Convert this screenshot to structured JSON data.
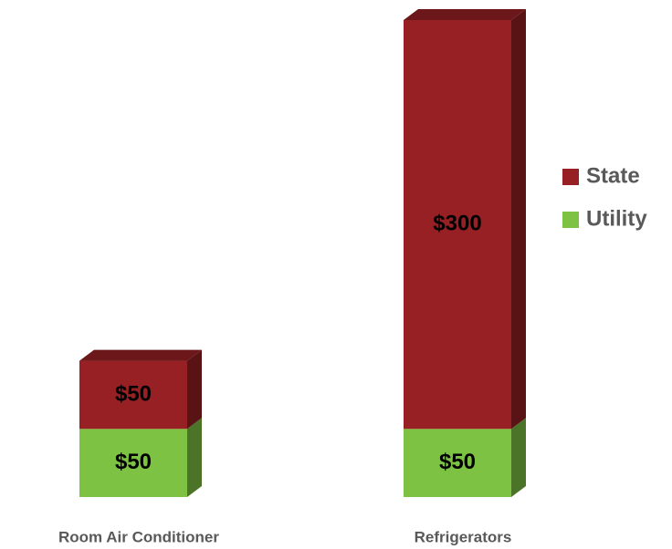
{
  "chart_data": {
    "type": "stacked_bar",
    "categories": [
      "Room Air Conditioner",
      "Refrigerators"
    ],
    "series": [
      {
        "name": "Utility",
        "color": "#7dc242",
        "values": [
          50,
          50
        ],
        "value_labels": [
          "$50",
          "$50"
        ]
      },
      {
        "name": "State",
        "color": "#962023",
        "values": [
          50,
          300
        ],
        "value_labels": [
          "$50",
          "$300"
        ]
      }
    ],
    "ylim": [
      0,
      350
    ],
    "legend": "right"
  }
}
